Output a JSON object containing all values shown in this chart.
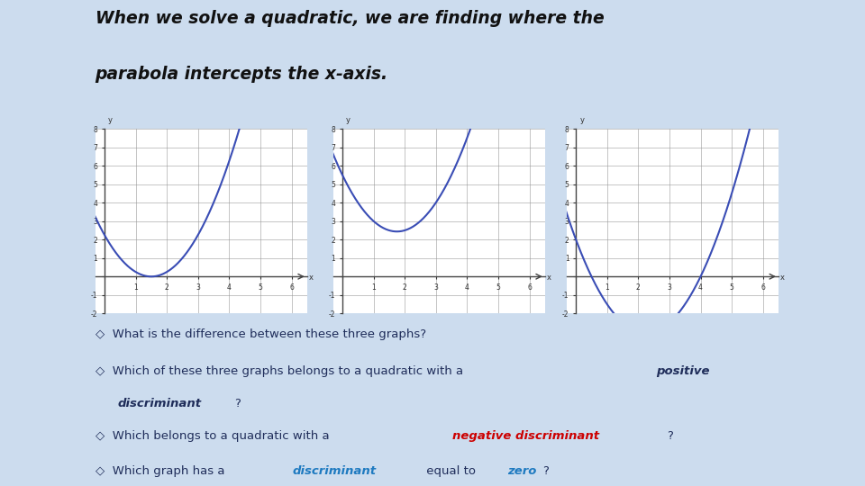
{
  "title_line1": "When we solve a quadratic, we are finding where the",
  "title_line2": "parabola intercepts the x-axis.",
  "bg_color": "#ccdcee",
  "graph_bg": "#ffffff",
  "curve_color": "#3a4db5",
  "xlim": [
    0,
    6
  ],
  "ylim": [
    -2,
    8
  ],
  "graph1_coeffs": [
    1,
    -3.0,
    2.25
  ],
  "graph2_coeffs": [
    1,
    -3.5,
    5.5
  ],
  "graph3_coeffs": [
    1,
    -4.5,
    2.0
  ],
  "text_color": "#1f2d5a",
  "accent_dark": "#1f3d7a",
  "accent_mid": "#4a6fa5",
  "grid_color": "#999999",
  "bullet": "◇",
  "red_color": "#cc0000",
  "blue_color": "#1e7ac0",
  "spine_color": "#444444"
}
